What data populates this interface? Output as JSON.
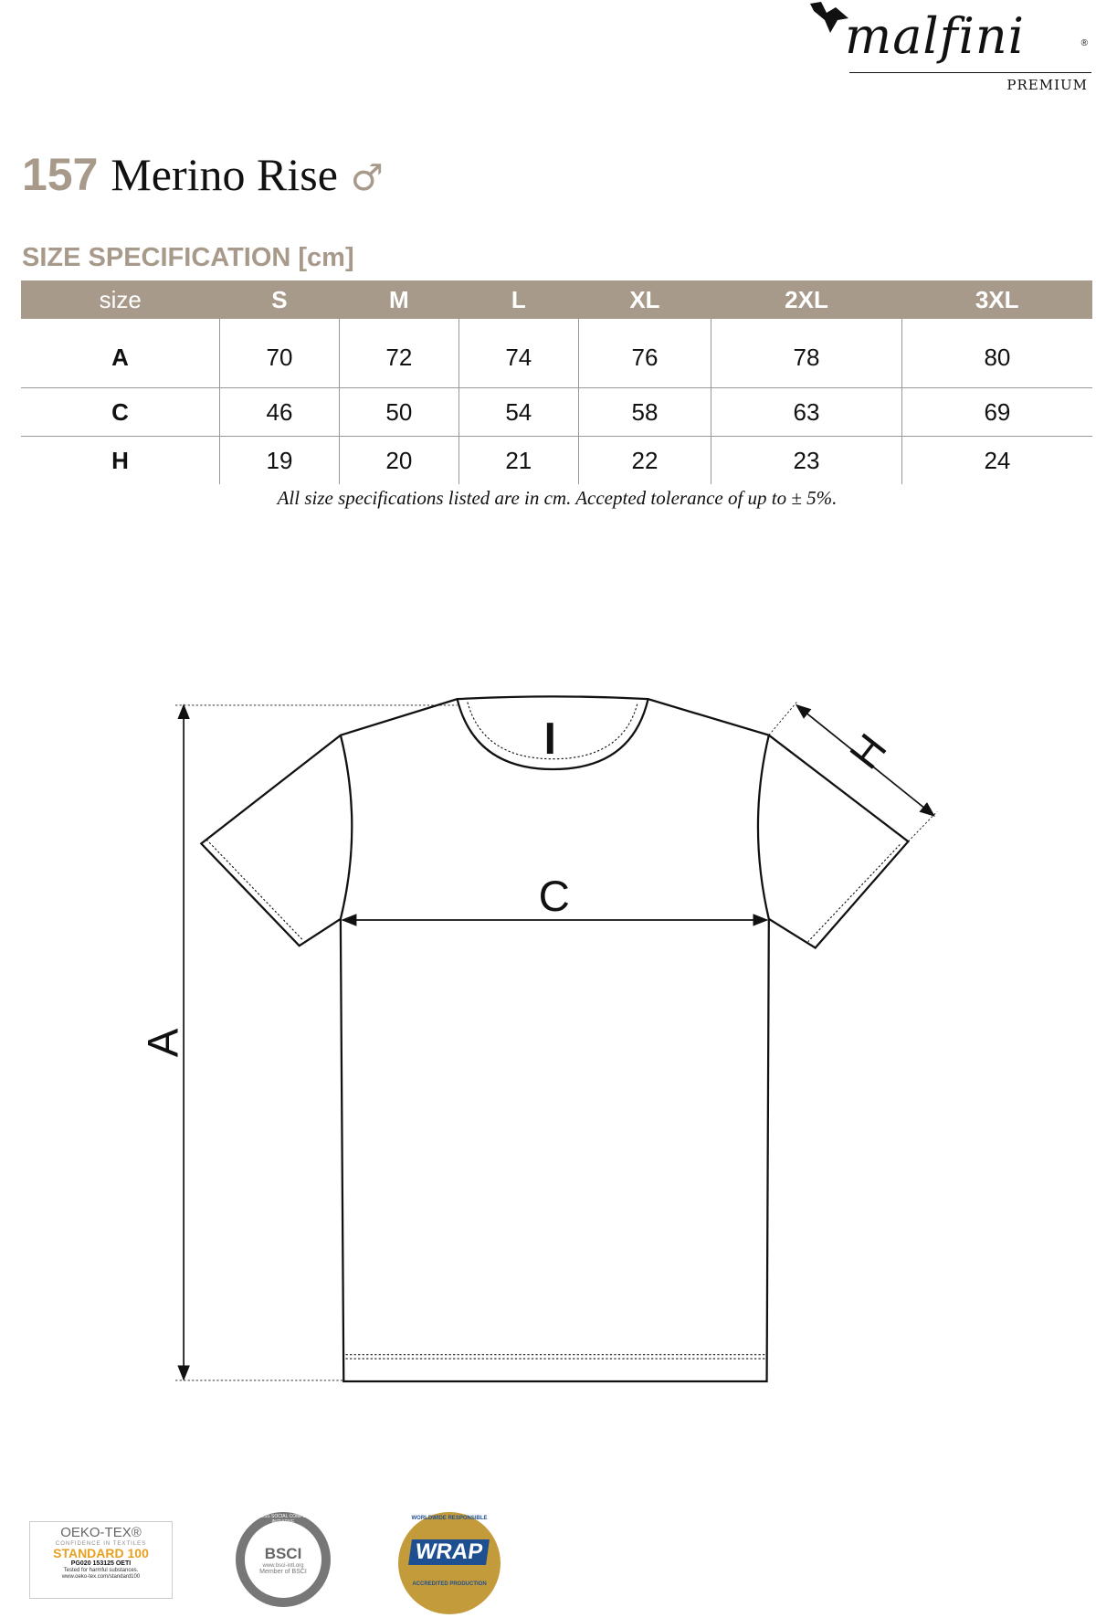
{
  "brand": {
    "name": "malfini",
    "tagline": "PREMIUM",
    "registered": "®"
  },
  "product": {
    "number": "157",
    "name": "Merino Rise",
    "gender_symbol": "♂"
  },
  "spec_heading": "SIZE SPECIFICATION [cm]",
  "table": {
    "headers": [
      "size",
      "S",
      "M",
      "L",
      "XL",
      "2XL",
      "3XL"
    ],
    "rows": [
      {
        "label": "A",
        "values": [
          "70",
          "72",
          "74",
          "76",
          "78",
          "80"
        ]
      },
      {
        "label": "C",
        "values": [
          "46",
          "50",
          "54",
          "58",
          "63",
          "69"
        ]
      },
      {
        "label": "H",
        "values": [
          "19",
          "20",
          "21",
          "22",
          "23",
          "24"
        ]
      }
    ]
  },
  "note": "All size specifications listed are in cm. Accepted tolerance of up to ± 5%.",
  "diagram": {
    "label_a": "A",
    "label_c": "C",
    "label_h": "H"
  },
  "certifications": {
    "oeko": {
      "title": "OEKO-TEX®",
      "sub": "CONFIDENCE IN TEXTILES",
      "standard": "STANDARD 100",
      "code": "PG020 153125 OETI",
      "tested": "Tested for harmful substances.",
      "url": "www.oeko-tex.com/standard100"
    },
    "bsci": {
      "ring": "BUSINESS SOCIAL COMPLIANCE INITIATIVE",
      "name": "BSCI",
      "url": "www.bsci-intl.org",
      "member": "Member of BSCI"
    },
    "wrap": {
      "top": "WORLDWIDE RESPONSIBLE",
      "name": "WRAP",
      "bottom": "ACCREDITED PRODUCTION"
    }
  },
  "colors": {
    "accent": "#a89a8b",
    "text": "#111111",
    "oeko_orange": "#e8a020",
    "wrap_blue": "#1e4f91",
    "wrap_gold": "#c49b3a"
  }
}
